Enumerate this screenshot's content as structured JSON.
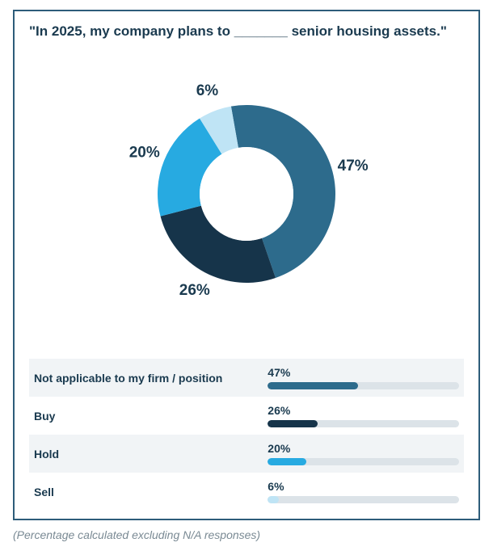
{
  "title": "\"In 2025, my company plans to _______ senior housing assets.\"",
  "footnote": "(Percentage calculated excluding N/A responses)",
  "chart": {
    "type": "donut",
    "outer_radius": 110,
    "inner_radius": 58,
    "start_angle_deg": -10,
    "center_color": "#ffffff",
    "background_color": "#ffffff",
    "container_border_color": "#2d5c7a",
    "label_fontsize": 19,
    "label_fontweight": 700,
    "label_color": "#1a3a4f",
    "legend_bar_track_color": "#dce3e8",
    "segments": [
      {
        "key": "na",
        "label": "Not applicable to my firm / position",
        "value": 47,
        "pct_text": "47%",
        "color": "#2d6b8c"
      },
      {
        "key": "buy",
        "label": "Buy",
        "value": 26,
        "pct_text": "26%",
        "color": "#16344a"
      },
      {
        "key": "hold",
        "label": "Hold",
        "value": 20,
        "pct_text": "20%",
        "color": "#27aae1"
      },
      {
        "key": "sell",
        "label": "Sell",
        "value": 6,
        "pct_text": "6%",
        "color": "#bfe4f5"
      }
    ]
  }
}
